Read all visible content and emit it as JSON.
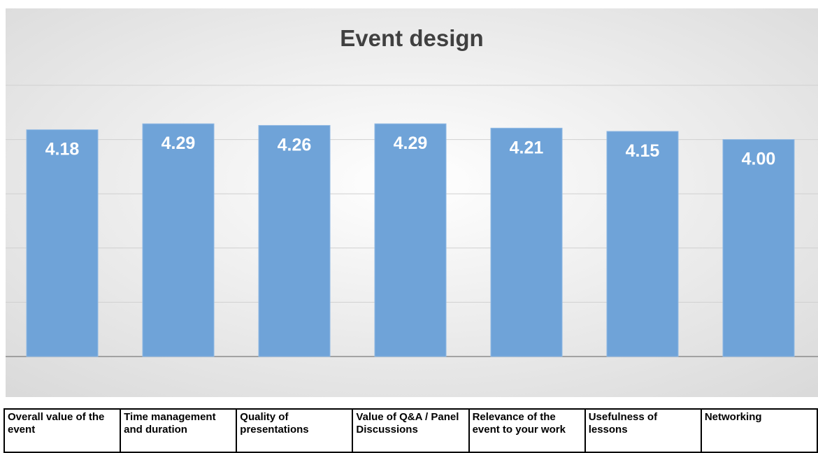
{
  "chart_data": {
    "type": "bar",
    "title": "Event design",
    "categories": [
      "Overall value of the event",
      "Time management and duration",
      "Quality of presentations",
      "Value of Q&A / Panel Discussions",
      "Relevance of the event to your work",
      "Usefulness of lessons",
      "Networking"
    ],
    "values": [
      4.18,
      4.29,
      4.26,
      4.29,
      4.21,
      4.15,
      4.0
    ],
    "value_labels": [
      "4.18",
      "4.29",
      "4.26",
      "4.29",
      "4.21",
      "4.15",
      "4.00"
    ],
    "xlabel": "",
    "ylabel": "",
    "ylim": [
      0,
      5
    ],
    "grid": true,
    "legend": "none",
    "colors": {
      "bar": "#6fa3d8",
      "bar_border": "#8fb8e3",
      "gridline": "#d0d0d0",
      "baseline": "#8c8c8c",
      "data_label": "#ffffff"
    }
  }
}
